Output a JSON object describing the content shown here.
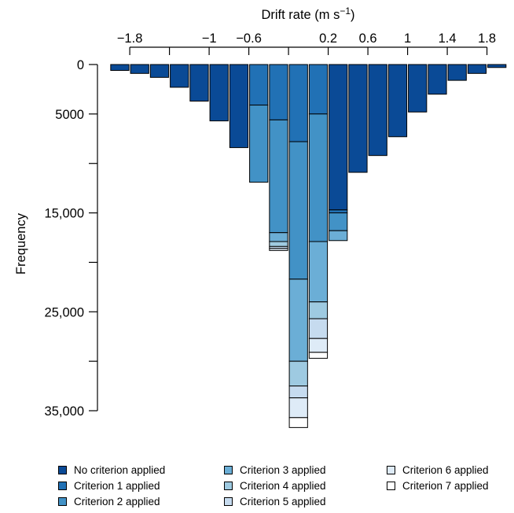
{
  "chart_data": {
    "type": "bar",
    "subtype": "stacked-histogram",
    "xlabel": "Drift rate (m s",
    "xlabel_sup": "−1",
    "xlabel_tail": ")",
    "ylabel": "Frequency",
    "x_axis_position": "top",
    "y_inverted": true,
    "ylim": [
      0,
      35000
    ],
    "y_ticks": [
      0,
      5000,
      10000,
      15000,
      20000,
      25000,
      30000,
      35000
    ],
    "y_tick_labels": [
      "0",
      "5000",
      "",
      "15,000",
      "",
      "25,000",
      "",
      "35,000"
    ],
    "x_ticks": [
      -1.8,
      -1.4,
      -1,
      -0.6,
      -0.2,
      0.2,
      0.6,
      1,
      1.4,
      1.8
    ],
    "x_tick_labels": [
      "−1.8",
      "",
      "−1",
      "−0.6",
      "",
      "0.2",
      "0.6",
      "1",
      "1.4",
      "1.8"
    ],
    "xlim": [
      -1.975,
      2.025
    ],
    "bin_width": 0.2,
    "x": [
      -1.9,
      -1.7,
      -1.5,
      -1.3,
      -1.1,
      -0.9,
      -0.7,
      -0.5,
      -0.3,
      -0.1,
      0.1,
      0.3,
      0.5,
      0.7,
      0.9,
      1.1,
      1.3,
      1.5,
      1.7,
      1.9
    ],
    "series": [
      {
        "name": "No criterion applied",
        "color": "#0a4a96",
        "values": [
          600,
          900,
          1300,
          2300,
          3700,
          5700,
          8400,
          0,
          0,
          0,
          0,
          14700,
          10900,
          9200,
          7300,
          4800,
          3000,
          1600,
          900,
          300
        ]
      },
      {
        "name": "Criterion 1 applied",
        "color": "#2171b5",
        "values": [
          0,
          0,
          0,
          0,
          0,
          0,
          0,
          4100,
          5600,
          7800,
          5000,
          300,
          0,
          0,
          0,
          0,
          0,
          0,
          0,
          0
        ]
      },
      {
        "name": "Criterion 2 applied",
        "color": "#4292c6",
        "values": [
          0,
          0,
          0,
          0,
          0,
          0,
          0,
          7800,
          11400,
          13900,
          12900,
          1800,
          0,
          0,
          0,
          0,
          0,
          0,
          0,
          0
        ]
      },
      {
        "name": "Criterion 3 applied",
        "color": "#6baed6",
        "values": [
          0,
          0,
          0,
          0,
          0,
          0,
          0,
          0,
          900,
          8300,
          6100,
          1000,
          0,
          0,
          0,
          0,
          0,
          0,
          0,
          0
        ]
      },
      {
        "name": "Criterion 4 applied",
        "color": "#9ecae1",
        "values": [
          0,
          0,
          0,
          0,
          0,
          0,
          0,
          0,
          500,
          2500,
          1700,
          0,
          0,
          0,
          0,
          0,
          0,
          0,
          0,
          0
        ]
      },
      {
        "name": "Criterion 5 applied",
        "color": "#c6dbef",
        "values": [
          0,
          0,
          0,
          0,
          0,
          0,
          0,
          0,
          200,
          1200,
          2000,
          0,
          0,
          0,
          0,
          0,
          0,
          0,
          0,
          0
        ]
      },
      {
        "name": "Criterion 6 applied",
        "color": "#deebf7",
        "values": [
          0,
          0,
          0,
          0,
          0,
          0,
          0,
          0,
          200,
          2000,
          1400,
          0,
          0,
          0,
          0,
          0,
          0,
          0,
          0,
          0
        ]
      },
      {
        "name": "Criterion 7 applied",
        "color": "#ffffff",
        "values": [
          0,
          0,
          0,
          0,
          0,
          0,
          0,
          0,
          0,
          1000,
          600,
          0,
          0,
          0,
          0,
          0,
          0,
          0,
          0,
          0
        ]
      }
    ]
  },
  "legend": {
    "items": [
      {
        "label": "No criterion applied",
        "color": "#0a4a96"
      },
      {
        "label": "Criterion 1 applied",
        "color": "#2171b5"
      },
      {
        "label": "Criterion 2 applied",
        "color": "#4292c6"
      },
      {
        "label": "Criterion 3 applied",
        "color": "#6baed6"
      },
      {
        "label": "Criterion 4 applied",
        "color": "#9ecae1"
      },
      {
        "label": "Criterion 5 applied",
        "color": "#c6dbef"
      },
      {
        "label": "Criterion 6 applied",
        "color": "#deebf7"
      },
      {
        "label": "Criterion 7 applied",
        "color": "#ffffff"
      }
    ]
  }
}
